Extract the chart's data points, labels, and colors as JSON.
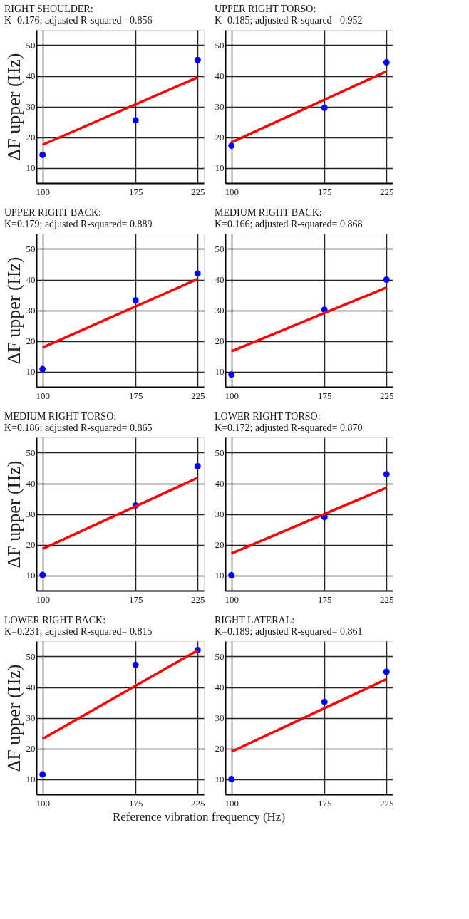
{
  "chart_data": [
    {
      "type": "scatter",
      "title": "RIGHT SHOULDER:",
      "subtitle": "K=0.176; adjusted R-squared= 0.856",
      "ylabel": "ΔF upper (Hz)",
      "xlim": [
        95,
        230
      ],
      "xticks": [
        100,
        175,
        225
      ],
      "ylim": [
        5,
        55
      ],
      "yticks": [
        10,
        20,
        30,
        40,
        50
      ],
      "grid": true,
      "series": [
        {
          "color": "#0000ff",
          "marker": "circle",
          "x": [
            100,
            175,
            225
          ],
          "values": [
            14.2,
            25.5,
            45.2
          ]
        },
        {
          "type": "line",
          "color": "#ff0000",
          "line_style": "solid",
          "x": [
            100,
            225
          ],
          "values": [
            17.5,
            39.5
          ]
        }
      ]
    },
    {
      "type": "scatter",
      "title": "UPPER RIGHT TORSO:",
      "subtitle": "K=0.185; adjusted R-squared= 0.952",
      "xlim": [
        95,
        230
      ],
      "xticks": [
        100,
        175,
        225
      ],
      "ylim": [
        5,
        55
      ],
      "yticks": [
        10,
        20,
        30,
        40,
        50
      ],
      "grid": true,
      "series": [
        {
          "color": "#0000ff",
          "marker": "circle",
          "x": [
            100,
            175,
            225
          ],
          "values": [
            17.2,
            29.6,
            44.4
          ]
        },
        {
          "type": "line",
          "color": "#ff0000",
          "line_style": "solid",
          "x": [
            100,
            225
          ],
          "values": [
            18.3,
            41.5
          ]
        }
      ]
    },
    {
      "type": "scatter",
      "title": "UPPER RIGHT BACK:",
      "subtitle": "K=0.179; adjusted R-squared= 0.889",
      "ylabel": "ΔF upper (Hz)",
      "xlim": [
        95,
        230
      ],
      "xticks": [
        100,
        175,
        225
      ],
      "ylim": [
        5,
        55
      ],
      "yticks": [
        10,
        20,
        30,
        40,
        50
      ],
      "grid": true,
      "series": [
        {
          "color": "#0000ff",
          "marker": "circle",
          "x": [
            100,
            175,
            225
          ],
          "values": [
            10.8,
            33.2,
            42.0
          ]
        },
        {
          "type": "line",
          "color": "#ff0000",
          "line_style": "solid",
          "x": [
            100,
            225
          ],
          "values": [
            17.8,
            40.2
          ]
        }
      ]
    },
    {
      "type": "scatter",
      "title": "MEDIUM RIGHT BACK:",
      "subtitle": "K=0.166; adjusted R-squared= 0.868",
      "xlim": [
        95,
        230
      ],
      "xticks": [
        100,
        175,
        225
      ],
      "ylim": [
        5,
        55
      ],
      "yticks": [
        10,
        20,
        30,
        40,
        50
      ],
      "grid": true,
      "series": [
        {
          "color": "#0000ff",
          "marker": "circle",
          "x": [
            100,
            175,
            225
          ],
          "values": [
            9.0,
            30.2,
            40.0
          ]
        },
        {
          "type": "line",
          "color": "#ff0000",
          "line_style": "solid",
          "x": [
            100,
            225
          ],
          "values": [
            16.6,
            37.4
          ]
        }
      ]
    },
    {
      "type": "scatter",
      "title": "MEDIUM RIGHT TORSO:",
      "subtitle": "K=0.186; adjusted R-squared= 0.865",
      "ylabel": "ΔF upper (Hz)",
      "xlim": [
        95,
        230
      ],
      "xticks": [
        100,
        175,
        225
      ],
      "ylim": [
        5,
        55
      ],
      "yticks": [
        10,
        20,
        30,
        40,
        50
      ],
      "grid": true,
      "series": [
        {
          "color": "#0000ff",
          "marker": "circle",
          "x": [
            100,
            175,
            225
          ],
          "values": [
            10.1,
            32.8,
            45.6
          ]
        },
        {
          "type": "line",
          "color": "#ff0000",
          "line_style": "solid",
          "x": [
            100,
            225
          ],
          "values": [
            18.6,
            41.8
          ]
        }
      ]
    },
    {
      "type": "scatter",
      "title": "LOWER RIGHT TORSO:",
      "subtitle": "K=0.172; adjusted R-squared= 0.870",
      "xlim": [
        95,
        230
      ],
      "xticks": [
        100,
        175,
        225
      ],
      "ylim": [
        5,
        55
      ],
      "yticks": [
        10,
        20,
        30,
        40,
        50
      ],
      "grid": true,
      "series": [
        {
          "color": "#0000ff",
          "marker": "circle",
          "x": [
            100,
            175,
            225
          ],
          "values": [
            10.0,
            29.0,
            43.0
          ]
        },
        {
          "type": "line",
          "color": "#ff0000",
          "line_style": "solid",
          "x": [
            100,
            225
          ],
          "values": [
            17.1,
            38.6
          ]
        }
      ]
    },
    {
      "type": "scatter",
      "title": "LOWER RIGHT BACK:",
      "subtitle": "K=0.231; adjusted R-squared= 0.815",
      "ylabel": "ΔF upper (Hz)",
      "xlabel": "Reference vibration frequency (Hz)",
      "xlim": [
        95,
        230
      ],
      "xticks": [
        100,
        175,
        225
      ],
      "ylim": [
        5,
        55
      ],
      "yticks": [
        10,
        20,
        30,
        40,
        50
      ],
      "grid": true,
      "series": [
        {
          "color": "#0000ff",
          "marker": "circle",
          "x": [
            100,
            175,
            225
          ],
          "values": [
            11.5,
            47.3,
            52.1
          ]
        },
        {
          "type": "line",
          "color": "#ff0000",
          "line_style": "solid",
          "x": [
            100,
            225
          ],
          "values": [
            23.1,
            52.0
          ]
        }
      ]
    },
    {
      "type": "scatter",
      "title": "RIGHT LATERAL:",
      "subtitle": "K=0.189; adjusted R-squared= 0.861",
      "xlim": [
        95,
        230
      ],
      "xticks": [
        100,
        175,
        225
      ],
      "ylim": [
        5,
        55
      ],
      "yticks": [
        10,
        20,
        30,
        40,
        50
      ],
      "grid": true,
      "series": [
        {
          "color": "#0000ff",
          "marker": "circle",
          "x": [
            100,
            175,
            225
          ],
          "values": [
            10.0,
            35.2,
            45.0
          ]
        },
        {
          "type": "line",
          "color": "#ff0000",
          "line_style": "solid",
          "x": [
            100,
            225
          ],
          "values": [
            18.9,
            42.6
          ]
        }
      ]
    }
  ]
}
